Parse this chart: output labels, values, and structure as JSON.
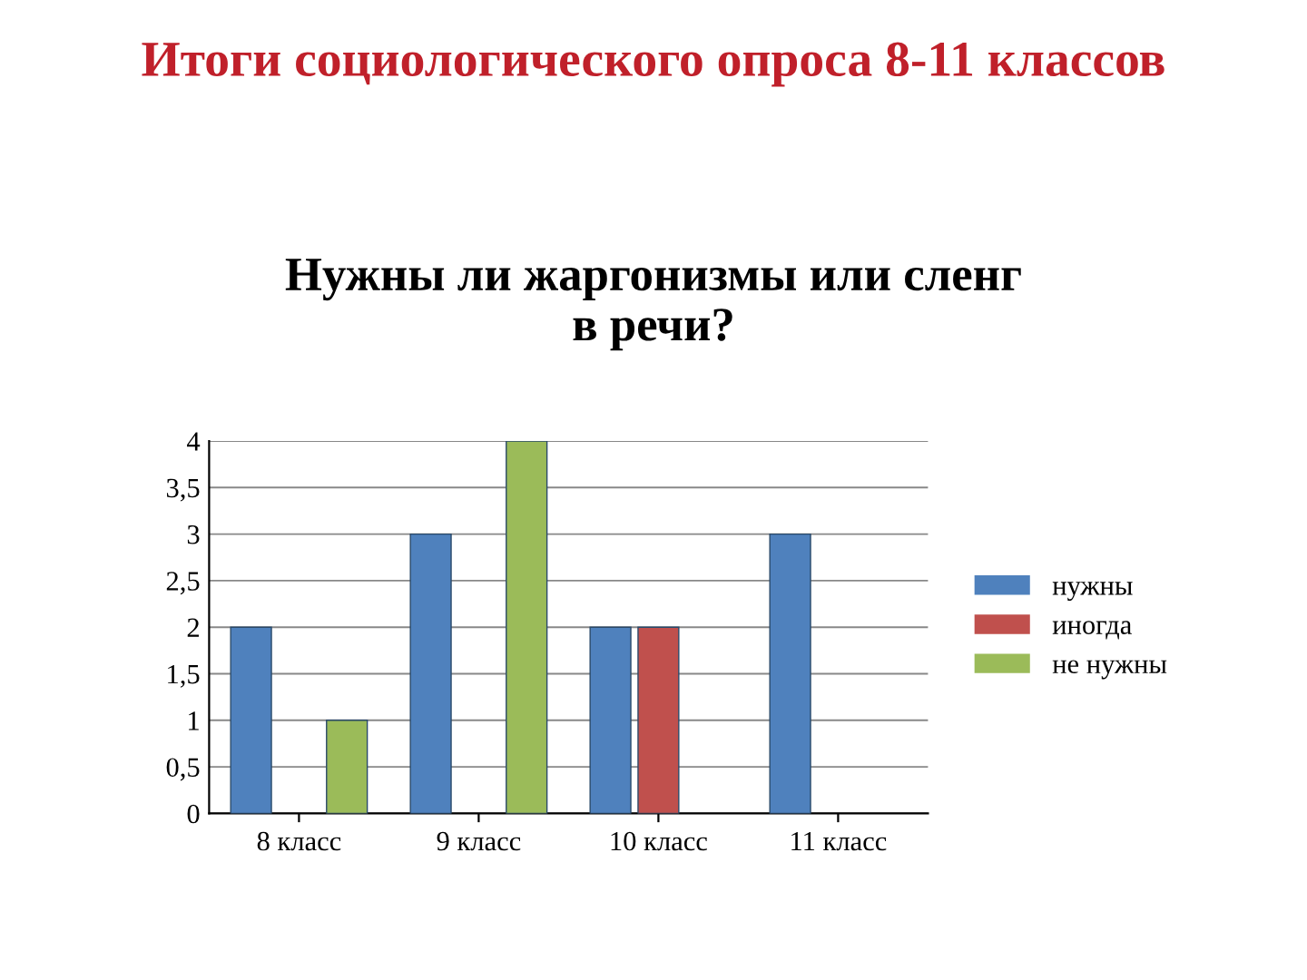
{
  "chart_data": {
    "type": "bar",
    "title": "Итоги социологического опроса 8-11 классов",
    "subtitle": "Нужны ли жаргонизмы или сленг\nв речи?",
    "categories": [
      "8 класс",
      "9 класс",
      "10 класс",
      "11 класс"
    ],
    "series": [
      {
        "name": "нужны",
        "color": "#4f81bd",
        "values": [
          2,
          3,
          2,
          3
        ]
      },
      {
        "name": "иногда",
        "color": "#c0504d",
        "values": [
          null,
          null,
          2,
          null
        ]
      },
      {
        "name": "не нужны",
        "color": "#9bbb59",
        "values": [
          1,
          4,
          null,
          null
        ]
      }
    ],
    "ylim": [
      0,
      4
    ],
    "yticks": [
      {
        "value": 0,
        "label": "0"
      },
      {
        "value": 0.5,
        "label": "0,5"
      },
      {
        "value": 1,
        "label": "1"
      },
      {
        "value": 1.5,
        "label": "1,5"
      },
      {
        "value": 2,
        "label": "2"
      },
      {
        "value": 2.5,
        "label": "2,5"
      },
      {
        "value": 3,
        "label": "3"
      },
      {
        "value": 3.5,
        "label": "3,5"
      },
      {
        "value": 4,
        "label": "4"
      }
    ],
    "grid": "y",
    "legend": "right"
  }
}
